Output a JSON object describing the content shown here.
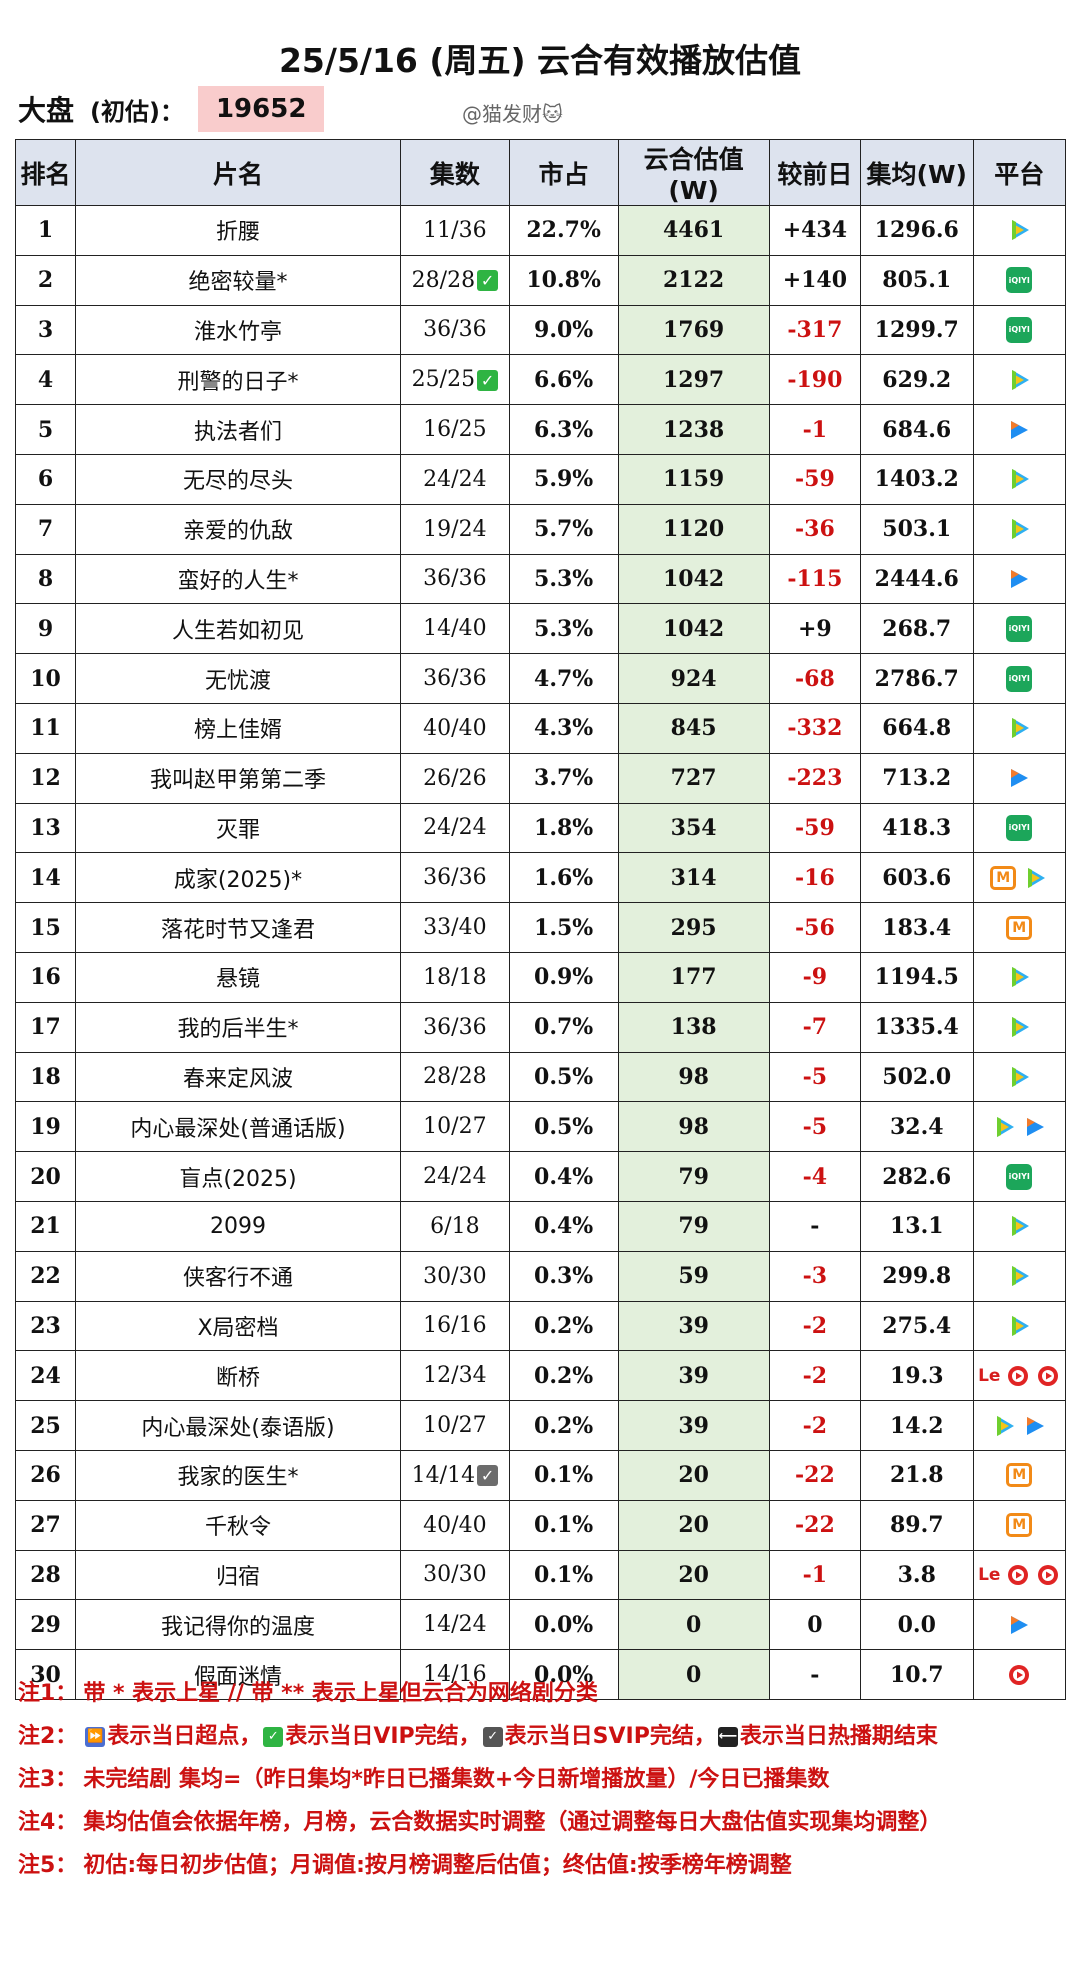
{
  "title": "25/5/16 (周五) 云合有效播放估值",
  "market": {
    "label": "大盘",
    "sub_label": "(初估)：",
    "value": "19652"
  },
  "watermark": "@猫发财🐱",
  "columns": [
    "排名",
    "片名",
    "集数",
    "市占",
    "云合估值(W)",
    "较前日",
    "集均(W)",
    "平台"
  ],
  "rows": [
    {
      "rank": "1",
      "name": "折腰",
      "episodes": "11/36",
      "check": "",
      "share": "22.7%",
      "estimate": "4461",
      "change": "+434",
      "change_neg": false,
      "avg": "1296.6",
      "platforms": [
        "tencent"
      ]
    },
    {
      "rank": "2",
      "name": "绝密较量*",
      "episodes": "28/28",
      "check": "green",
      "share": "10.8%",
      "estimate": "2122",
      "change": "+140",
      "change_neg": false,
      "avg": "805.1",
      "platforms": [
        "iqiyi"
      ]
    },
    {
      "rank": "3",
      "name": "淮水竹亭",
      "episodes": "36/36",
      "check": "",
      "share": "9.0%",
      "estimate": "1769",
      "change": "-317",
      "change_neg": true,
      "avg": "1299.7",
      "platforms": [
        "iqiyi"
      ]
    },
    {
      "rank": "4",
      "name": "刑警的日子*",
      "episodes": "25/25",
      "check": "green",
      "share": "6.6%",
      "estimate": "1297",
      "change": "-190",
      "change_neg": true,
      "avg": "629.2",
      "platforms": [
        "tencent"
      ]
    },
    {
      "rank": "5",
      "name": "执法者们",
      "episodes": "16/25",
      "check": "",
      "share": "6.3%",
      "estimate": "1238",
      "change": "-1",
      "change_neg": true,
      "avg": "684.6",
      "platforms": [
        "youku"
      ]
    },
    {
      "rank": "6",
      "name": "无尽的尽头",
      "episodes": "24/24",
      "check": "",
      "share": "5.9%",
      "estimate": "1159",
      "change": "-59",
      "change_neg": true,
      "avg": "1403.2",
      "platforms": [
        "tencent"
      ]
    },
    {
      "rank": "7",
      "name": "亲爱的仇敌",
      "episodes": "19/24",
      "check": "",
      "share": "5.7%",
      "estimate": "1120",
      "change": "-36",
      "change_neg": true,
      "avg": "503.1",
      "platforms": [
        "tencent"
      ]
    },
    {
      "rank": "8",
      "name": "蛮好的人生*",
      "episodes": "36/36",
      "check": "",
      "share": "5.3%",
      "estimate": "1042",
      "change": "-115",
      "change_neg": true,
      "avg": "2444.6",
      "platforms": [
        "youku"
      ]
    },
    {
      "rank": "9",
      "name": "人生若如初见",
      "episodes": "14/40",
      "check": "",
      "share": "5.3%",
      "estimate": "1042",
      "change": "+9",
      "change_neg": false,
      "avg": "268.7",
      "platforms": [
        "iqiyi"
      ]
    },
    {
      "rank": "10",
      "name": "无忧渡",
      "episodes": "36/36",
      "check": "",
      "share": "4.7%",
      "estimate": "924",
      "change": "-68",
      "change_neg": true,
      "avg": "2786.7",
      "platforms": [
        "iqiyi"
      ]
    },
    {
      "rank": "11",
      "name": "榜上佳婿",
      "episodes": "40/40",
      "check": "",
      "share": "4.3%",
      "estimate": "845",
      "change": "-332",
      "change_neg": true,
      "avg": "664.8",
      "platforms": [
        "tencent"
      ]
    },
    {
      "rank": "12",
      "name": "我叫赵甲第第二季",
      "episodes": "26/26",
      "check": "",
      "share": "3.7%",
      "estimate": "727",
      "change": "-223",
      "change_neg": true,
      "avg": "713.2",
      "platforms": [
        "youku"
      ]
    },
    {
      "rank": "13",
      "name": "灭罪",
      "episodes": "24/24",
      "check": "",
      "share": "1.8%",
      "estimate": "354",
      "change": "-59",
      "change_neg": true,
      "avg": "418.3",
      "platforms": [
        "iqiyi"
      ]
    },
    {
      "rank": "14",
      "name": "成家(2025)*",
      "episodes": "36/36",
      "check": "",
      "share": "1.6%",
      "estimate": "314",
      "change": "-16",
      "change_neg": true,
      "avg": "603.6",
      "platforms": [
        "mango",
        "tencent"
      ]
    },
    {
      "rank": "15",
      "name": "落花时节又逢君",
      "episodes": "33/40",
      "check": "",
      "share": "1.5%",
      "estimate": "295",
      "change": "-56",
      "change_neg": true,
      "avg": "183.4",
      "platforms": [
        "mango"
      ]
    },
    {
      "rank": "16",
      "name": "悬镜",
      "episodes": "18/18",
      "check": "",
      "share": "0.9%",
      "estimate": "177",
      "change": "-9",
      "change_neg": true,
      "avg": "1194.5",
      "platforms": [
        "tencent"
      ]
    },
    {
      "rank": "17",
      "name": "我的后半生*",
      "episodes": "36/36",
      "check": "",
      "share": "0.7%",
      "estimate": "138",
      "change": "-7",
      "change_neg": true,
      "avg": "1335.4",
      "platforms": [
        "tencent"
      ]
    },
    {
      "rank": "18",
      "name": "春来定风波",
      "episodes": "28/28",
      "check": "",
      "share": "0.5%",
      "estimate": "98",
      "change": "-5",
      "change_neg": true,
      "avg": "502.0",
      "platforms": [
        "tencent"
      ]
    },
    {
      "rank": "19",
      "name": "内心最深处(普通话版)",
      "episodes": "10/27",
      "check": "",
      "share": "0.5%",
      "estimate": "98",
      "change": "-5",
      "change_neg": true,
      "avg": "32.4",
      "platforms": [
        "tencent",
        "youku"
      ]
    },
    {
      "rank": "20",
      "name": "盲点(2025)",
      "episodes": "24/24",
      "check": "",
      "share": "0.4%",
      "estimate": "79",
      "change": "-4",
      "change_neg": true,
      "avg": "282.6",
      "platforms": [
        "iqiyi"
      ]
    },
    {
      "rank": "21",
      "name": "2099",
      "episodes": "6/18",
      "check": "",
      "share": "0.4%",
      "estimate": "79",
      "change": "-",
      "change_neg": false,
      "avg": "13.1",
      "platforms": [
        "tencent"
      ]
    },
    {
      "rank": "22",
      "name": "侠客行不通",
      "episodes": "30/30",
      "check": "",
      "share": "0.3%",
      "estimate": "59",
      "change": "-3",
      "change_neg": true,
      "avg": "299.8",
      "platforms": [
        "tencent"
      ]
    },
    {
      "rank": "23",
      "name": "X局密档",
      "episodes": "16/16",
      "check": "",
      "share": "0.2%",
      "estimate": "39",
      "change": "-2",
      "change_neg": true,
      "avg": "275.4",
      "platforms": [
        "tencent"
      ]
    },
    {
      "rank": "24",
      "name": "断桥",
      "episodes": "12/34",
      "check": "",
      "share": "0.2%",
      "estimate": "39",
      "change": "-2",
      "change_neg": true,
      "avg": "19.3",
      "platforms": [
        "le",
        "play-red",
        "play-red"
      ]
    },
    {
      "rank": "25",
      "name": "内心最深处(泰语版)",
      "episodes": "10/27",
      "check": "",
      "share": "0.2%",
      "estimate": "39",
      "change": "-2",
      "change_neg": true,
      "avg": "14.2",
      "platforms": [
        "tencent",
        "youku"
      ]
    },
    {
      "rank": "26",
      "name": "我家的医生*",
      "episodes": "14/14",
      "check": "gray",
      "share": "0.1%",
      "estimate": "20",
      "change": "-22",
      "change_neg": true,
      "avg": "21.8",
      "platforms": [
        "mango"
      ]
    },
    {
      "rank": "27",
      "name": "千秋令",
      "episodes": "40/40",
      "check": "",
      "share": "0.1%",
      "estimate": "20",
      "change": "-22",
      "change_neg": true,
      "avg": "89.7",
      "platforms": [
        "mango"
      ]
    },
    {
      "rank": "28",
      "name": "归宿",
      "episodes": "30/30",
      "check": "",
      "share": "0.1%",
      "estimate": "20",
      "change": "-1",
      "change_neg": true,
      "avg": "3.8",
      "platforms": [
        "le",
        "play-red",
        "play-red"
      ]
    },
    {
      "rank": "29",
      "name": "我记得你的温度",
      "episodes": "14/24",
      "check": "",
      "share": "0.0%",
      "estimate": "0",
      "change": "0",
      "change_neg": false,
      "avg": "0.0",
      "platforms": [
        "youku"
      ]
    },
    {
      "rank": "30",
      "name": "假面迷情",
      "episodes": "14/16",
      "check": "",
      "share": "0.0%",
      "estimate": "0",
      "change": "-",
      "change_neg": false,
      "avg": "10.7",
      "platforms": [
        "play-red"
      ]
    }
  ],
  "notes": {
    "n1": {
      "label": "注1：",
      "text": "带 * 表示上星 // 带 ** 表示上星但云合为网络剧分类"
    },
    "n2": {
      "label": "注2：",
      "t1": "表示当日超点，",
      "t2": "表示当日VIP完结，",
      "t3": "表示当日SVIP完结，",
      "t4": "表示当日热播期结束"
    },
    "n3": {
      "label": "注3：",
      "text": "未完结剧 集均=（昨日集均*昨日已播集数+今日新增播放量）/今日已播集数"
    },
    "n4": {
      "label": "注4：",
      "text": "集均估值会依据年榜，月榜，云合数据实时调整（通过调整每日大盘估值实现集均调整）"
    },
    "n5": {
      "label": "注5：",
      "text": "初估:每日初步估值；月调值:按月榜调整后估值；终估值:按季榜年榜调整"
    }
  },
  "colors": {
    "header_bg": "#dde3ee",
    "estimate_bg": "#e3f0dc",
    "negative": "#cc1111",
    "market_bg": "#f9cccc",
    "notes": "#cc1111"
  }
}
